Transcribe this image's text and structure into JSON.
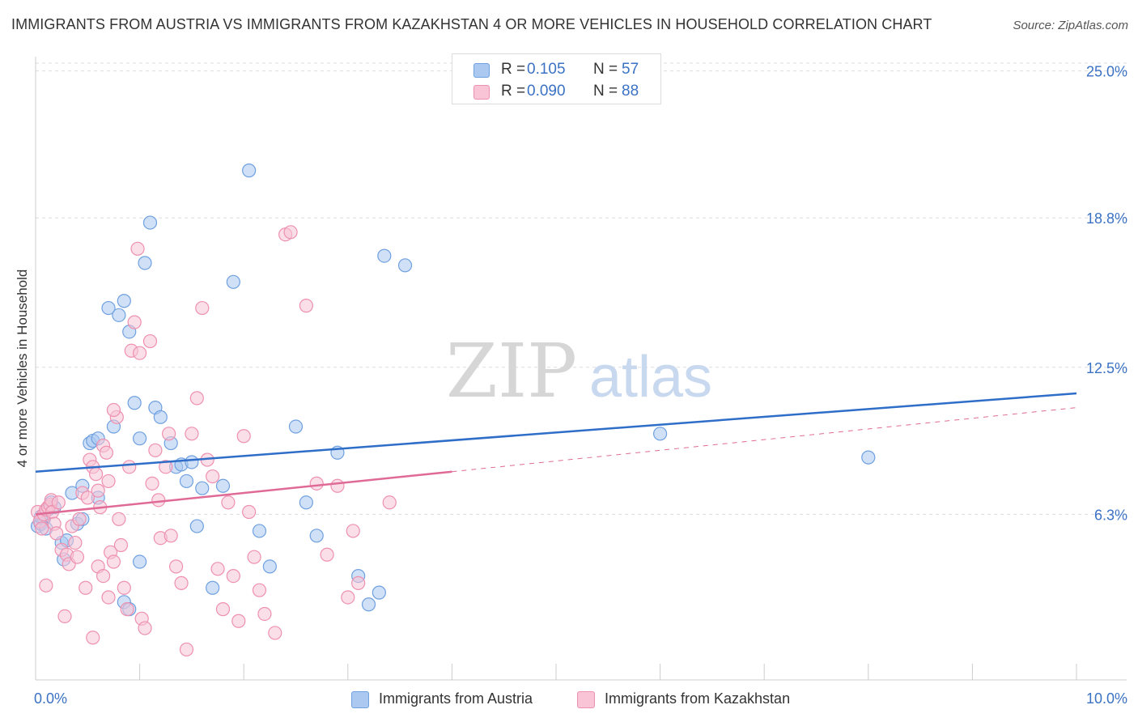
{
  "title": "IMMIGRANTS FROM AUSTRIA VS IMMIGRANTS FROM KAZAKHSTAN 4 OR MORE VEHICLES IN HOUSEHOLD CORRELATION CHART",
  "source": "Source: ZipAtlas.com",
  "watermark": {
    "zip": "ZIP",
    "atlas": "atlas"
  },
  "legend_top": [
    {
      "r_label": "R =",
      "r_value": "0.105",
      "n_label": "N =",
      "n_value": "57"
    },
    {
      "r_label": "R =",
      "r_value": "0.090",
      "n_label": "N =",
      "n_value": "88"
    }
  ],
  "chart_data": {
    "type": "scatter",
    "title": "IMMIGRANTS FROM AUSTRIA VS IMMIGRANTS FROM KAZAKHSTAN 4 OR MORE VEHICLES IN HOUSEHOLD CORRELATION CHART",
    "xlabel": "",
    "ylabel": "4 or more Vehicles in Household",
    "xlim": [
      0,
      10
    ],
    "ylim": [
      0,
      25.6
    ],
    "x_tick_labels": [
      "0.0%",
      "10.0%"
    ],
    "y_ticks": [
      6.3,
      12.5,
      18.8,
      25.0
    ],
    "y_tick_labels": [
      "6.3%",
      "12.5%",
      "18.8%",
      "25.0%"
    ],
    "grid": true,
    "legend_position": "top-center",
    "series": [
      {
        "name": "Immigrants from Austria",
        "color": "#6fa0e0",
        "fill": "#aac8f0",
        "trend_color": "#2f6ec8",
        "r": 0.105,
        "n": 57,
        "trend": {
          "x0": 0,
          "y0": 8.1,
          "x1": 10,
          "y1": 11.4
        },
        "points": [
          [
            0.02,
            5.8
          ],
          [
            0.05,
            5.9
          ],
          [
            0.08,
            6.1
          ],
          [
            0.1,
            5.7
          ],
          [
            0.12,
            6.5
          ],
          [
            0.15,
            6.8
          ],
          [
            0.18,
            6.6
          ],
          [
            0.25,
            5.1
          ],
          [
            0.27,
            4.4
          ],
          [
            0.35,
            7.2
          ],
          [
            0.4,
            5.9
          ],
          [
            0.45,
            6.1
          ],
          [
            0.45,
            7.5
          ],
          [
            0.52,
            9.3
          ],
          [
            0.55,
            9.4
          ],
          [
            0.6,
            9.5
          ],
          [
            0.7,
            15.0
          ],
          [
            0.75,
            10.0
          ],
          [
            0.8,
            14.7
          ],
          [
            0.85,
            15.3
          ],
          [
            0.9,
            14.0
          ],
          [
            0.95,
            11.0
          ],
          [
            1.0,
            9.5
          ],
          [
            1.05,
            16.9
          ],
          [
            1.1,
            18.6
          ],
          [
            1.15,
            10.8
          ],
          [
            1.2,
            10.4
          ],
          [
            1.3,
            9.3
          ],
          [
            1.35,
            8.3
          ],
          [
            1.4,
            8.4
          ],
          [
            1.45,
            7.7
          ],
          [
            1.5,
            8.5
          ],
          [
            1.55,
            5.8
          ],
          [
            1.6,
            7.4
          ],
          [
            1.7,
            3.2
          ],
          [
            1.8,
            7.5
          ],
          [
            1.9,
            16.1
          ],
          [
            2.05,
            20.8
          ],
          [
            2.15,
            5.6
          ],
          [
            2.25,
            4.1
          ],
          [
            2.5,
            10.0
          ],
          [
            2.6,
            6.8
          ],
          [
            2.7,
            5.4
          ],
          [
            2.9,
            8.9
          ],
          [
            3.1,
            3.7
          ],
          [
            3.2,
            2.5
          ],
          [
            3.3,
            3.0
          ],
          [
            3.35,
            17.2
          ],
          [
            3.55,
            16.8
          ],
          [
            0.85,
            2.6
          ],
          [
            0.9,
            2.3
          ],
          [
            1.0,
            4.3
          ],
          [
            6.0,
            9.7
          ],
          [
            8.0,
            8.7
          ],
          [
            0.3,
            5.2
          ],
          [
            0.6,
            7.0
          ],
          [
            0.05,
            6.2
          ]
        ]
      },
      {
        "name": "Immigrants from Kazakhstan",
        "color": "#ee90b0",
        "fill": "#f8c4d6",
        "trend_color": "#e06a96",
        "r": 0.09,
        "n": 88,
        "trend": {
          "x0": 0,
          "y0": 6.3,
          "x1": 10,
          "y1": 10.8,
          "solid_until": 4.0
        },
        "points": [
          [
            0.02,
            6.4
          ],
          [
            0.04,
            6.0
          ],
          [
            0.06,
            5.7
          ],
          [
            0.08,
            6.3
          ],
          [
            0.1,
            6.5
          ],
          [
            0.12,
            6.6
          ],
          [
            0.14,
            6.7
          ],
          [
            0.15,
            6.9
          ],
          [
            0.16,
            6.4
          ],
          [
            0.18,
            5.9
          ],
          [
            0.2,
            5.5
          ],
          [
            0.22,
            6.8
          ],
          [
            0.25,
            4.8
          ],
          [
            0.3,
            4.6
          ],
          [
            0.32,
            4.2
          ],
          [
            0.35,
            5.8
          ],
          [
            0.38,
            5.1
          ],
          [
            0.4,
            4.5
          ],
          [
            0.42,
            6.1
          ],
          [
            0.45,
            7.2
          ],
          [
            0.48,
            3.2
          ],
          [
            0.5,
            7.0
          ],
          [
            0.52,
            8.6
          ],
          [
            0.55,
            8.3
          ],
          [
            0.58,
            8.0
          ],
          [
            0.6,
            7.3
          ],
          [
            0.62,
            6.6
          ],
          [
            0.65,
            9.2
          ],
          [
            0.68,
            8.9
          ],
          [
            0.7,
            7.7
          ],
          [
            0.72,
            4.7
          ],
          [
            0.75,
            4.3
          ],
          [
            0.78,
            10.4
          ],
          [
            0.8,
            6.1
          ],
          [
            0.82,
            5.0
          ],
          [
            0.85,
            3.2
          ],
          [
            0.88,
            2.3
          ],
          [
            0.9,
            8.3
          ],
          [
            0.92,
            13.2
          ],
          [
            0.95,
            14.4
          ],
          [
            0.98,
            17.5
          ],
          [
            1.0,
            13.1
          ],
          [
            1.02,
            1.9
          ],
          [
            1.05,
            1.5
          ],
          [
            1.1,
            13.6
          ],
          [
            1.12,
            7.6
          ],
          [
            1.15,
            9.0
          ],
          [
            1.18,
            6.9
          ],
          [
            1.2,
            5.3
          ],
          [
            1.25,
            8.3
          ],
          [
            1.28,
            9.7
          ],
          [
            1.3,
            5.4
          ],
          [
            1.35,
            4.1
          ],
          [
            1.4,
            3.4
          ],
          [
            1.45,
            0.6
          ],
          [
            1.5,
            9.7
          ],
          [
            1.55,
            11.2
          ],
          [
            1.6,
            15.0
          ],
          [
            1.65,
            8.6
          ],
          [
            1.7,
            7.9
          ],
          [
            1.75,
            4.0
          ],
          [
            1.8,
            2.3
          ],
          [
            1.85,
            6.8
          ],
          [
            1.9,
            3.7
          ],
          [
            1.95,
            1.8
          ],
          [
            2.0,
            9.6
          ],
          [
            2.05,
            6.4
          ],
          [
            2.1,
            4.5
          ],
          [
            2.15,
            3.1
          ],
          [
            2.2,
            2.1
          ],
          [
            2.3,
            1.3
          ],
          [
            2.4,
            18.1
          ],
          [
            2.45,
            18.2
          ],
          [
            2.6,
            15.1
          ],
          [
            2.7,
            7.6
          ],
          [
            2.8,
            4.6
          ],
          [
            2.9,
            7.5
          ],
          [
            3.0,
            2.8
          ],
          [
            3.05,
            5.6
          ],
          [
            3.1,
            3.4
          ],
          [
            3.4,
            6.8
          ],
          [
            0.1,
            3.3
          ],
          [
            0.28,
            2.0
          ],
          [
            0.55,
            1.1
          ],
          [
            0.6,
            4.1
          ],
          [
            0.65,
            3.7
          ],
          [
            0.7,
            2.8
          ],
          [
            0.75,
            10.7
          ]
        ]
      }
    ]
  }
}
